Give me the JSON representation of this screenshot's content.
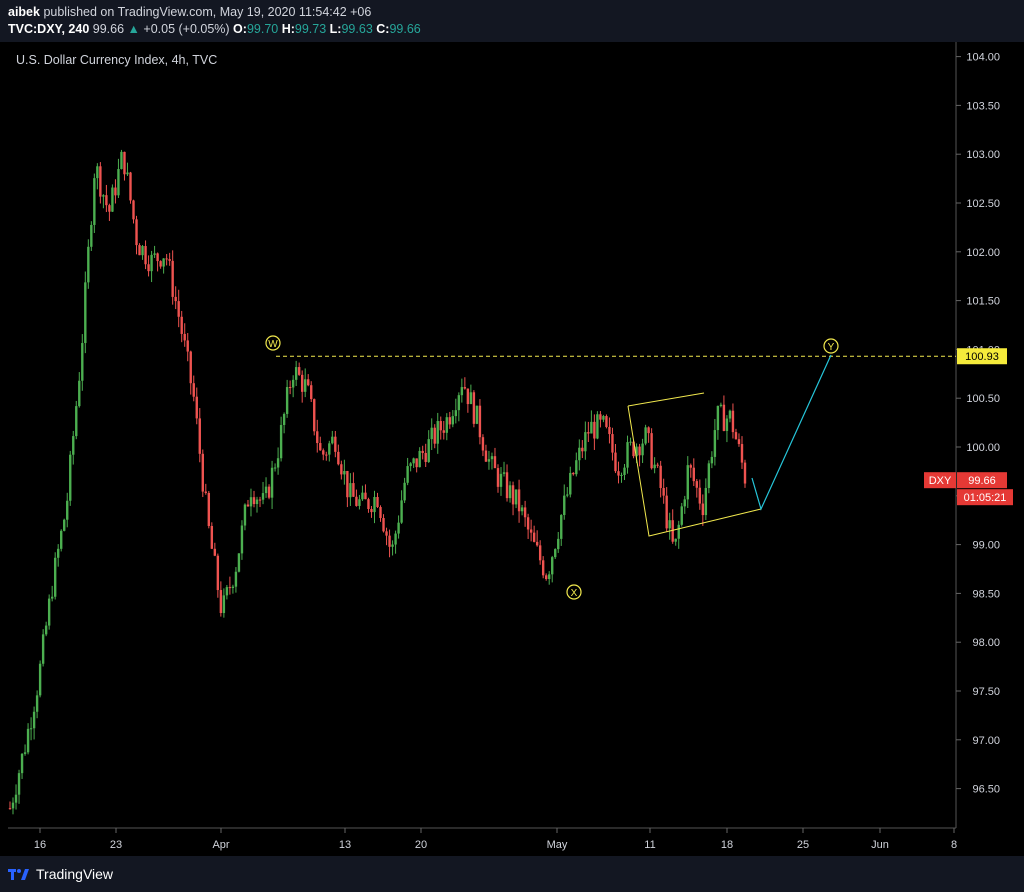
{
  "header": {
    "author": "aibek",
    "published_text": " published on TradingView.com, May 19, 2020 11:54:42 +06",
    "symbol": "TVC:DXY, 240",
    "last": "99.66",
    "change_arrow": "▲",
    "change": "+0.05 (+0.05%)",
    "o_label": "O:",
    "o_value": "99.70",
    "h_label": "H:",
    "h_value": "99.73",
    "l_label": "L:",
    "l_value": "99.63",
    "c_label": "C:",
    "c_value": "99.66"
  },
  "pane_title": "U.S. Dollar Currency Index, 4h, TVC",
  "footer": {
    "brand": "TradingView"
  },
  "colors": {
    "up": "#4caf50",
    "down": "#ef5350",
    "background": "#000000",
    "panel": "#131722",
    "wave": "#f2e94e",
    "target": "#26c6da",
    "price_tag": "#e53935"
  },
  "chart_data": {
    "type": "candlestick",
    "title": "U.S. Dollar Currency Index, 4h, TVC",
    "x_ticks": [
      "16",
      "23",
      "Apr",
      "13",
      "20",
      "May",
      "11",
      "18",
      "25",
      "Jun",
      "8"
    ],
    "y_ticks": [
      "104.00",
      "103.50",
      "103.00",
      "102.50",
      "102.00",
      "101.50",
      "101.00",
      "100.50",
      "100.00",
      "99.50",
      "99.00",
      "98.50",
      "98.00",
      "97.50",
      "97.00",
      "96.50"
    ],
    "ylim": [
      96.1,
      104.1
    ],
    "close_path": [
      96.3,
      96.9,
      97.6,
      98.6,
      99.4,
      100.9,
      102.9,
      102.4,
      103.0,
      102.1,
      101.9,
      102.0,
      101.3,
      100.5,
      99.2,
      98.3,
      98.8,
      99.6,
      99.4,
      100.0,
      100.8,
      100.6,
      99.9,
      100.1,
      99.5,
      99.4,
      99.5,
      98.9,
      99.7,
      99.9,
      100.1,
      100.3,
      100.7,
      100.3,
      99.8,
      99.6,
      99.4,
      99.0,
      98.7,
      99.3,
      99.8,
      100.2,
      100.2,
      99.8,
      100.0,
      100.1,
      99.6,
      98.9,
      99.8,
      99.4,
      100.3,
      100.3,
      99.7
    ],
    "current_price": "99.66",
    "current_symbol": "DXY",
    "countdown": "01:05:21",
    "level": {
      "value": 100.93,
      "label": "100.93"
    },
    "wave_labels": [
      "W",
      "X",
      "Y"
    ]
  }
}
